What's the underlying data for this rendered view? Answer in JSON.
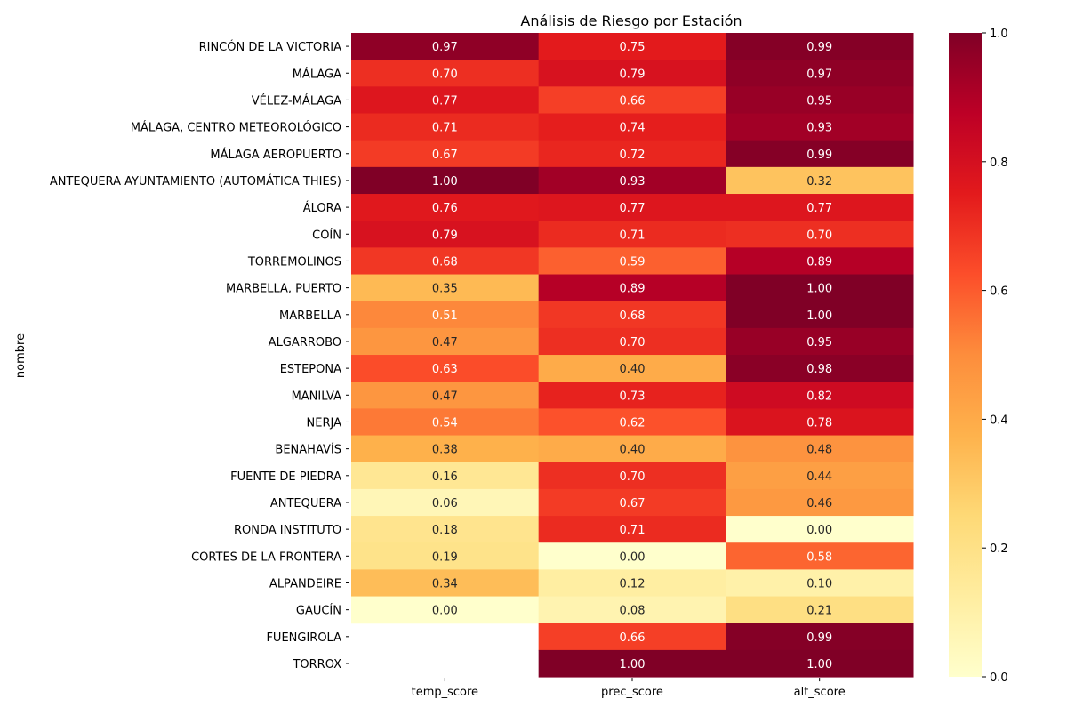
{
  "chart_data": {
    "type": "heatmap",
    "title": "Análisis de Riesgo por Estación",
    "ylabel": "nombre",
    "xlabel": "",
    "columns": [
      "temp_score",
      "prec_score",
      "alt_score"
    ],
    "rows": [
      "RINCÓN DE LA VICTORIA",
      "MÁLAGA",
      "VÉLEZ-MÁLAGA",
      "MÁLAGA, CENTRO METEOROLÓGICO",
      "MÁLAGA AEROPUERTO",
      "ANTEQUERA AYUNTAMIENTO (AUTOMÁTICA THIES)",
      "ÁLORA",
      "COÍN",
      "TORREMOLINOS",
      "MARBELLA, PUERTO",
      "MARBELLA",
      "ALGARROBO",
      "ESTEPONA",
      "MANILVA",
      "NERJA",
      "BENAHAVÍS",
      "FUENTE DE PIEDRA",
      "ANTEQUERA",
      "RONDA INSTITUTO",
      "CORTES DE LA FRONTERA",
      "ALPANDEIRE",
      "GAUCÍN",
      "FUENGIROLA",
      "TORROX"
    ],
    "values": [
      [
        0.97,
        0.75,
        0.99
      ],
      [
        0.7,
        0.79,
        0.97
      ],
      [
        0.77,
        0.66,
        0.95
      ],
      [
        0.71,
        0.74,
        0.93
      ],
      [
        0.67,
        0.72,
        0.99
      ],
      [
        1.0,
        0.93,
        0.32
      ],
      [
        0.76,
        0.77,
        0.77
      ],
      [
        0.79,
        0.71,
        0.7
      ],
      [
        0.68,
        0.59,
        0.89
      ],
      [
        0.35,
        0.89,
        1.0
      ],
      [
        0.51,
        0.68,
        1.0
      ],
      [
        0.47,
        0.7,
        0.95
      ],
      [
        0.63,
        0.4,
        0.98
      ],
      [
        0.47,
        0.73,
        0.82
      ],
      [
        0.54,
        0.62,
        0.78
      ],
      [
        0.38,
        0.4,
        0.48
      ],
      [
        0.16,
        0.7,
        0.44
      ],
      [
        0.06,
        0.67,
        0.46
      ],
      [
        0.18,
        0.71,
        0.0
      ],
      [
        0.19,
        0.0,
        0.58
      ],
      [
        0.34,
        0.12,
        0.1
      ],
      [
        0.0,
        0.08,
        0.21
      ],
      [
        null,
        0.66,
        0.99
      ],
      [
        null,
        1.0,
        1.0
      ]
    ],
    "colormap": "YlOrRd",
    "colorbar": {
      "range": [
        0.0,
        1.0
      ],
      "ticks": [
        0.0,
        0.2,
        0.4,
        0.6,
        0.8,
        1.0
      ],
      "tick_labels": [
        "0.0",
        "0.2",
        "0.4",
        "0.6",
        "0.8",
        "1.0"
      ]
    },
    "annotations": "values shown in each cell with 2 decimals",
    "grid": false,
    "legend": "colorbar right"
  }
}
